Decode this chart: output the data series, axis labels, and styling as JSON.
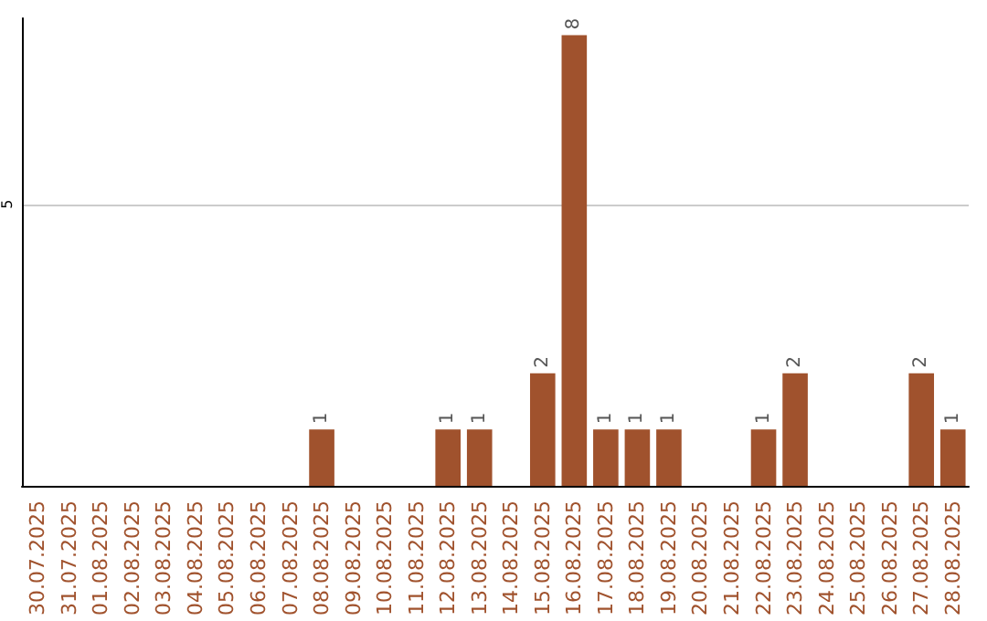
{
  "chart_data": {
    "type": "bar",
    "categories": [
      "30.07.2025",
      "31.07.2025",
      "01.08.2025",
      "02.08.2025",
      "03.08.2025",
      "04.08.2025",
      "05.08.2025",
      "06.08.2025",
      "07.08.2025",
      "08.08.2025",
      "09.08.2025",
      "10.08.2025",
      "11.08.2025",
      "12.08.2025",
      "13.08.2025",
      "14.08.2025",
      "15.08.2025",
      "16.08.2025",
      "17.08.2025",
      "18.08.2025",
      "19.08.2025",
      "20.08.2025",
      "21.08.2025",
      "22.08.2025",
      "23.08.2025",
      "24.08.2025",
      "25.08.2025",
      "26.08.2025",
      "27.08.2025",
      "28.08.2025"
    ],
    "values": [
      0,
      0,
      0,
      0,
      0,
      0,
      0,
      0,
      0,
      1,
      0,
      0,
      0,
      1,
      1,
      0,
      2,
      8,
      1,
      1,
      1,
      0,
      0,
      1,
      2,
      0,
      0,
      0,
      2,
      1
    ],
    "value_labels": [
      null,
      null,
      null,
      null,
      null,
      null,
      null,
      null,
      null,
      "1",
      null,
      null,
      null,
      "1",
      "1",
      null,
      "2",
      "8",
      "1",
      "1",
      "1",
      null,
      null,
      "1",
      "2",
      null,
      null,
      null,
      "2",
      "1"
    ],
    "color": "#a0522d",
    "ylim": [
      0,
      8.3
    ],
    "yticks": [
      5
    ],
    "grid": "y"
  }
}
